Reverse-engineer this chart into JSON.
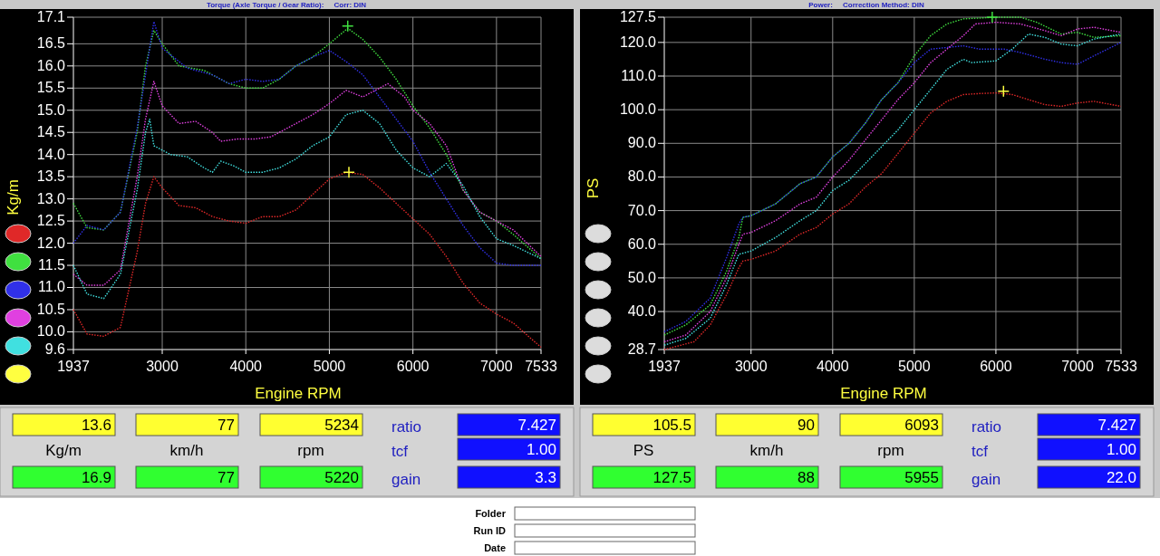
{
  "chart_data": [
    {
      "type": "line",
      "title": "Torque (Axle Torque / Gear Ratio):     Corr: DIN",
      "xlabel": "Engine RPM",
      "ylabel": "Kg/m",
      "xlim": [
        1937,
        7533
      ],
      "xticks": [
        1937,
        3000,
        4000,
        5000,
        6000,
        7000,
        7533
      ],
      "ylim": [
        9.6,
        17.1
      ],
      "yticks": [
        9.6,
        {
          "value": 10,
          "label": "10.0"
        },
        10.5,
        {
          "value": 11,
          "label": "11.0"
        },
        11.5,
        {
          "value": 12,
          "label": "12.0"
        },
        12.5,
        {
          "value": 13,
          "label": "13.0"
        },
        13.5,
        {
          "value": 14,
          "label": "14.0"
        },
        14.5,
        {
          "value": 15,
          "label": "15.0"
        },
        15.5,
        {
          "value": 16,
          "label": "16.0"
        },
        16.5,
        17.1
      ],
      "grid": true,
      "line_style": "dotted",
      "marker": "none",
      "series": [
        {
          "color": "#e02828",
          "x": [
            1937,
            2100,
            2300,
            2500,
            2700,
            2800,
            2900,
            3000,
            3200,
            3400,
            3600,
            3800,
            4000,
            4200,
            4400,
            4600,
            4800,
            5000,
            5200,
            5400,
            5600,
            5800,
            6000,
            6200,
            6400,
            6600,
            6800,
            7000,
            7200,
            7533
          ],
          "values": [
            10.5,
            9.95,
            9.9,
            10.1,
            11.8,
            12.9,
            13.5,
            13.25,
            12.85,
            12.8,
            12.6,
            12.5,
            12.45,
            12.6,
            12.6,
            12.75,
            13.1,
            13.45,
            13.6,
            13.55,
            13.25,
            12.9,
            12.55,
            12.2,
            11.7,
            11.1,
            10.65,
            10.4,
            10.2,
            9.65
          ]
        },
        {
          "color": "#40e040",
          "x": [
            1937,
            2100,
            2300,
            2500,
            2700,
            2800,
            2900,
            3000,
            3200,
            3500,
            3800,
            4000,
            4200,
            4400,
            4600,
            4800,
            5000,
            5220,
            5400,
            5600,
            5800,
            6000,
            6200,
            6400,
            6600,
            6800,
            7000,
            7200,
            7533
          ],
          "values": [
            12.9,
            12.35,
            12.3,
            12.7,
            14.5,
            16.0,
            16.8,
            16.5,
            16.0,
            15.9,
            15.6,
            15.5,
            15.5,
            15.7,
            16.0,
            16.2,
            16.5,
            16.85,
            16.6,
            16.2,
            15.7,
            15.1,
            14.6,
            14.0,
            13.2,
            12.7,
            12.5,
            12.2,
            11.65
          ]
        },
        {
          "color": "#3030e8",
          "x": [
            1937,
            2100,
            2300,
            2500,
            2700,
            2900,
            3000,
            3300,
            3600,
            3800,
            4000,
            4200,
            4400,
            4600,
            4800,
            5000,
            5200,
            5400,
            5600,
            5800,
            6000,
            6200,
            6400,
            6600,
            6800,
            7000,
            7200,
            7533
          ],
          "values": [
            12.0,
            12.4,
            12.3,
            12.7,
            14.6,
            17.0,
            16.4,
            15.95,
            15.8,
            15.6,
            15.7,
            15.65,
            15.7,
            16.0,
            16.2,
            16.35,
            16.1,
            15.8,
            15.3,
            14.8,
            14.3,
            13.6,
            13.0,
            12.4,
            11.9,
            11.55,
            11.5,
            11.5
          ]
        },
        {
          "color": "#e040e0",
          "x": [
            1937,
            2100,
            2300,
            2500,
            2700,
            2800,
            2900,
            3000,
            3200,
            3400,
            3600,
            3700,
            3900,
            4100,
            4300,
            4500,
            4800,
            5000,
            5200,
            5400,
            5600,
            5700,
            5900,
            6000,
            6200,
            6400,
            6600,
            6800,
            7000,
            7200,
            7533
          ],
          "values": [
            11.3,
            11.05,
            11.05,
            11.4,
            13.5,
            14.8,
            15.65,
            15.1,
            14.7,
            14.75,
            14.5,
            14.3,
            14.35,
            14.35,
            14.4,
            14.6,
            14.9,
            15.15,
            15.45,
            15.3,
            15.5,
            15.6,
            15.3,
            15.0,
            14.7,
            14.2,
            13.2,
            12.7,
            12.5,
            12.3,
            11.7
          ]
        },
        {
          "color": "#40e0e0",
          "x": [
            1937,
            2100,
            2300,
            2500,
            2700,
            2800,
            2850,
            2900,
            3100,
            3300,
            3500,
            3600,
            3700,
            3850,
            4000,
            4200,
            4400,
            4600,
            4800,
            5000,
            5200,
            5400,
            5600,
            5800,
            6000,
            6200,
            6400,
            6600,
            6800,
            7000,
            7200,
            7533
          ],
          "values": [
            11.5,
            10.85,
            10.75,
            11.3,
            13.2,
            14.5,
            14.8,
            14.2,
            14.0,
            13.95,
            13.7,
            13.6,
            13.85,
            13.75,
            13.6,
            13.6,
            13.7,
            13.9,
            14.2,
            14.4,
            14.9,
            15.0,
            14.7,
            14.1,
            13.7,
            13.5,
            13.8,
            13.3,
            12.6,
            12.1,
            11.95,
            11.65
          ]
        },
        {
          "type": "scatter",
          "marker": "cross",
          "color": "#ffff40",
          "x": [
            5234
          ],
          "values": [
            13.6
          ]
        },
        {
          "type": "scatter",
          "marker": "cross",
          "color": "#40e040",
          "x": [
            5220
          ],
          "values": [
            16.9
          ]
        }
      ],
      "annotations": [
        "13.6",
        "77",
        "5234",
        "ratio",
        "7.427",
        "Kg/m",
        "km/h",
        "rpm",
        "tcf",
        "1.00",
        "16.9",
        "77",
        "5220",
        "gain",
        "3.3"
      ]
    },
    {
      "type": "line",
      "title": "Power:     Correction Method: DIN",
      "xlabel": "Engine RPM",
      "ylabel": "PS",
      "xlim": [
        1937,
        7533
      ],
      "xticks": [
        1937,
        3000,
        4000,
        5000,
        6000,
        7000,
        7533
      ],
      "ylim": [
        28.7,
        127.5
      ],
      "yticks": [
        28.7,
        {
          "value": 40,
          "label": "40.0"
        },
        {
          "value": 50,
          "label": "50.0"
        },
        {
          "value": 60,
          "label": "60.0"
        },
        {
          "value": 70,
          "label": "70.0"
        },
        {
          "value": 80,
          "label": "80.0"
        },
        {
          "value": 90,
          "label": "90.0"
        },
        {
          "value": 100,
          "label": "100.0"
        },
        {
          "value": 110,
          "label": "110.0"
        },
        {
          "value": 120,
          "label": "120.0"
        },
        127.5
      ],
      "grid": true,
      "line_style": "dotted",
      "marker": "none",
      "series": [
        {
          "color": "#e02828",
          "x": [
            1937,
            2300,
            2500,
            2700,
            2850,
            2900,
            3000,
            3300,
            3600,
            3800,
            4000,
            4200,
            4400,
            4600,
            4800,
            5000,
            5200,
            5400,
            5600,
            5800,
            6000,
            6200,
            6400,
            6600,
            6800,
            7000,
            7200,
            7533
          ],
          "values": [
            28.7,
            31,
            36,
            45,
            53,
            55,
            55.5,
            58,
            63,
            65,
            69,
            72,
            77,
            81,
            87,
            93,
            99,
            102.5,
            104.5,
            104.8,
            105,
            104.5,
            103,
            101.5,
            101,
            102,
            102.5,
            101
          ]
        },
        {
          "color": "#40e040",
          "x": [
            1937,
            2200,
            2500,
            2700,
            2850,
            2900,
            3000,
            3300,
            3600,
            3800,
            4000,
            4200,
            4400,
            4600,
            4800,
            5000,
            5200,
            5400,
            5600,
            6000,
            6300,
            6500,
            6800,
            7000,
            7200,
            7533
          ],
          "values": [
            33,
            36,
            42,
            52,
            62,
            68,
            68.5,
            72,
            78,
            80,
            86,
            90,
            96,
            103,
            108,
            116,
            122,
            125.5,
            127,
            127.5,
            127.5,
            126,
            122.5,
            123,
            121.5,
            122
          ]
        },
        {
          "color": "#3030e8",
          "x": [
            1937,
            2200,
            2500,
            2700,
            2850,
            2900,
            3000,
            3300,
            3600,
            3800,
            4000,
            4200,
            4400,
            4600,
            4800,
            5000,
            5200,
            5400,
            5600,
            5800,
            6100,
            6300,
            6600,
            6800,
            7000,
            7200,
            7533
          ],
          "values": [
            34,
            37,
            44,
            56,
            66,
            68,
            68.5,
            72,
            78,
            80,
            86,
            90,
            96,
            103,
            108,
            114,
            118,
            118.5,
            119,
            118,
            118,
            117,
            115,
            114,
            113.5,
            116,
            120
          ]
        },
        {
          "color": "#e040e0",
          "x": [
            1937,
            2200,
            2500,
            2700,
            2850,
            2900,
            3000,
            3300,
            3600,
            3800,
            4000,
            4200,
            4400,
            4600,
            4800,
            5000,
            5200,
            5400,
            5600,
            5750,
            6000,
            6300,
            6600,
            6800,
            7000,
            7200,
            7533
          ],
          "values": [
            31,
            33,
            40,
            50,
            60,
            63,
            63.5,
            67,
            72,
            74,
            80,
            85,
            91,
            97,
            103,
            108,
            114,
            118,
            122,
            125.5,
            126,
            125.5,
            123.5,
            122,
            124,
            124.5,
            123
          ]
        },
        {
          "color": "#40e0e0",
          "x": [
            1937,
            2200,
            2500,
            2700,
            2850,
            3000,
            3300,
            3600,
            3800,
            4000,
            4200,
            4400,
            4600,
            4800,
            5000,
            5200,
            5400,
            5600,
            5700,
            6000,
            6200,
            6400,
            6600,
            6800,
            7000,
            7200,
            7533
          ],
          "values": [
            30,
            32,
            38,
            48,
            57,
            58,
            62,
            67,
            70,
            76,
            79,
            84,
            89,
            94,
            100,
            106,
            112,
            115,
            114,
            114.5,
            118,
            122.5,
            121.5,
            119.5,
            119,
            121,
            122.5
          ]
        },
        {
          "type": "scatter",
          "marker": "cross",
          "color": "#ffff40",
          "x": [
            6093
          ],
          "values": [
            105.5
          ]
        },
        {
          "type": "scatter",
          "marker": "cross",
          "color": "#40e040",
          "x": [
            5955
          ],
          "values": [
            127.5
          ]
        }
      ],
      "annotations": [
        "105.5",
        "90",
        "6093",
        "ratio",
        "7.427",
        "PS",
        "km/h",
        "rpm",
        "tcf",
        "1.00",
        "127.5",
        "88",
        "5955",
        "gain",
        "22.0"
      ]
    },
    {
      "type": "other",
      "annotations": [
        "Folder",
        "Run ID",
        "Date"
      ]
    }
  ]
}
